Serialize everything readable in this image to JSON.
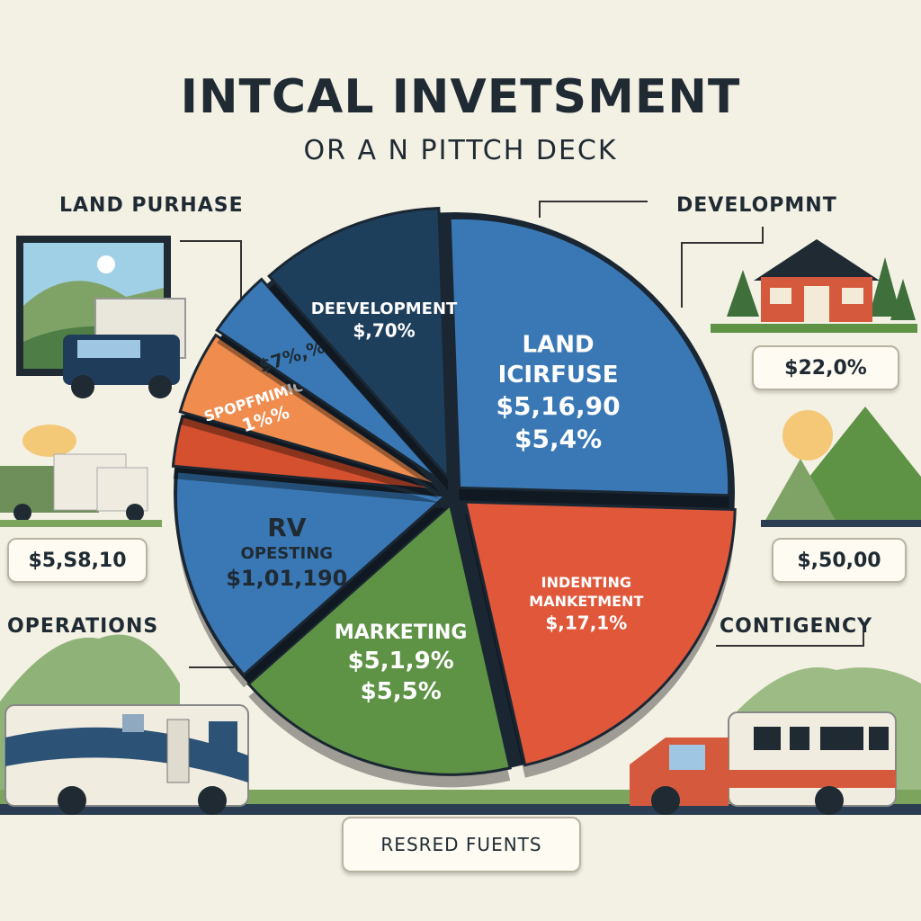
{
  "header": {
    "title": "INTCAL INVETSMENT",
    "subtitle": "OR A N PITTCH DECK"
  },
  "side_labels": {
    "land_purchase": "LAND PURHASE",
    "development": "DEVELOPMNT",
    "operations": "OPERATIONS",
    "contingency": "CONTIGENCY"
  },
  "side_values": {
    "left": "$5,S8,10",
    "right_top": "$22,0%",
    "right_mid": "$,50,00"
  },
  "footer": {
    "button_label": "RESRED FUENTS"
  },
  "colors": {
    "blue": "#3a78b5",
    "orange_red": "#e0573a",
    "green": "#5e9245",
    "navy": "#1e3f5c",
    "orange": "#ef8c4e",
    "red_orange": "#d4502f",
    "pie_base": "#1a2733"
  },
  "chart_data": {
    "type": "pie",
    "title": "INTCAL INVETSMENT",
    "subtitle": "OR A N PITTCH DECK",
    "slices": [
      {
        "key": "land",
        "lines": [
          "LAND",
          "ICIRFUSE",
          "$5,16,90",
          "$5,4%"
        ],
        "share": 0.26,
        "color": "#3a78b5"
      },
      {
        "key": "indenting",
        "lines": [
          "INDENTING",
          "MANKETMENT",
          "$,17,1%"
        ],
        "share": 0.21,
        "color": "#e0573a"
      },
      {
        "key": "marketing",
        "lines": [
          "MARKETING",
          "$5,1,9%",
          "$5,5%"
        ],
        "share": 0.17,
        "color": "#5e9245"
      },
      {
        "key": "rv",
        "lines": [
          "RV",
          "OPESTING",
          "$1,01,190"
        ],
        "share": 0.13,
        "color": "#3a78b5"
      },
      {
        "key": "red",
        "lines": [],
        "share": 0.03,
        "color": "#d4502f"
      },
      {
        "key": "sporp",
        "lines": [
          "SPOPFMIMICIRY",
          "1%%"
        ],
        "share": 0.05,
        "color": "#ef8c4e"
      },
      {
        "key": "blue2",
        "lines": [
          "$7%,%"
        ],
        "share": 0.04,
        "color": "#3a78b5"
      },
      {
        "key": "development",
        "lines": [
          "DEEVELOPMENT",
          "$,70%"
        ],
        "share": 0.11,
        "color": "#1e3f5c"
      }
    ]
  }
}
